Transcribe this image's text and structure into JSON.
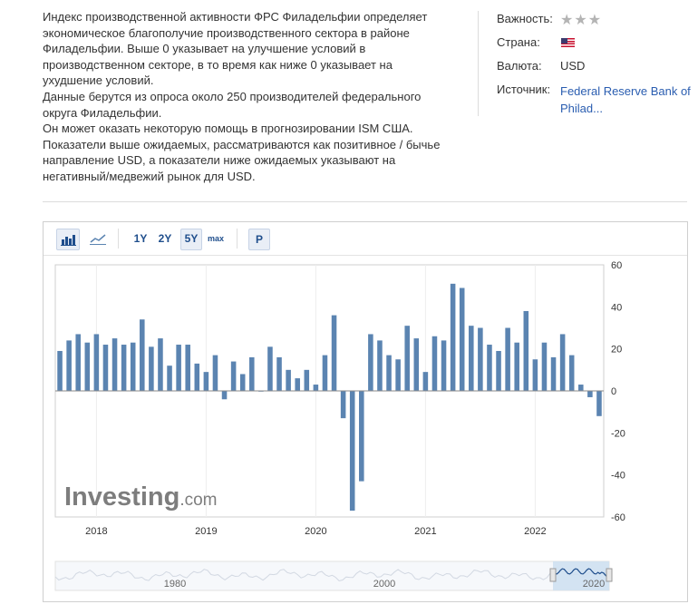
{
  "description": {
    "paragraphs": [
      "Индекс производственной активности ФРС Филадельфии определяет экономическое благополучие производственного сектора в районе Филадельфии. Выше 0 указывает на улучшение условий в производственном секторе, в то время как ниже 0 указывает на ухудшение условий.",
      "Данные берутся из опроса около 250 производителей федерального округа Филадельфии.",
      "Он может оказать некоторую помощь в прогнозировании ISM США.",
      "Показатели выше ожидаемых, рассматриваются как позитивное / бычье направление USD, а показатели ниже ожидаемых указывают на негативный/медвежий рынок для USD."
    ]
  },
  "meta": {
    "importance_label": "Важность:",
    "importance_stars": "★★★",
    "country_label": "Страна:",
    "country_flag": "us-flag-icon",
    "currency_label": "Валюта:",
    "currency_value": "USD",
    "source_label": "Источник:",
    "source_value": "Federal Reserve Bank of Philad..."
  },
  "toolbar": {
    "ranges": [
      "1Y",
      "2Y",
      "5Y",
      "max"
    ],
    "active_range": "5Y",
    "p_label": "P",
    "icons": [
      "bar-chart-icon",
      "line-chart-icon"
    ]
  },
  "colors": {
    "bar": "#5b84b1",
    "accent": "#1f4e8c",
    "link": "#2a5db0",
    "navigator_fill": "#cfe0f1"
  },
  "chart_data": {
    "type": "bar",
    "title": "",
    "xlabel": "",
    "ylabel": "",
    "ylim": [
      -60,
      60
    ],
    "yticks": [
      60,
      40,
      20,
      0,
      -20,
      -40,
      -60
    ],
    "x_tick_labels": [
      "2018",
      "2019",
      "2020",
      "2021",
      "2022"
    ],
    "start": "2017-09",
    "end": "2022-08",
    "frequency": "monthly",
    "values": [
      19,
      24,
      27,
      23,
      27,
      22,
      25,
      22,
      23,
      34,
      21,
      25,
      12,
      22,
      22,
      13,
      9,
      17,
      -4,
      14,
      8,
      16,
      0,
      21,
      16,
      10,
      6,
      10,
      3,
      17,
      36,
      -13,
      -57,
      -43,
      27,
      24,
      17,
      15,
      31,
      25,
      9,
      26,
      24,
      51,
      49,
      31,
      30,
      22,
      19,
      30,
      23,
      38,
      15,
      23,
      16,
      27,
      17,
      3,
      -3,
      -12
    ],
    "watermark": "Investing.com",
    "navigator_labels": [
      "1980",
      "2000",
      "2020"
    ]
  }
}
